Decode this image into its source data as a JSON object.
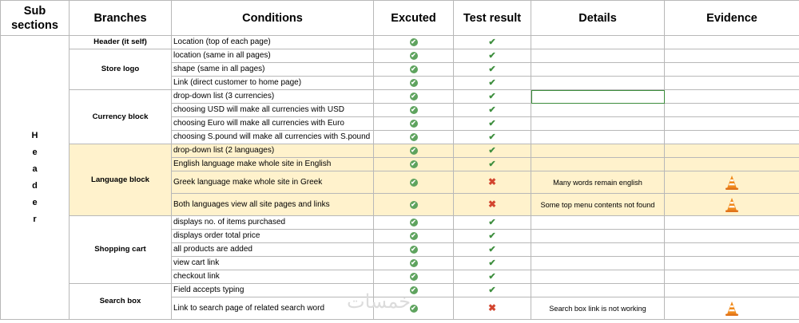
{
  "headers": {
    "sub_sections": "Sub sections",
    "branches": "Branches",
    "conditions": "Conditions",
    "executed": "Excuted",
    "test_result": "Test result",
    "details": "Details",
    "evidence": "Evidence"
  },
  "section_letters": [
    "H",
    "e",
    "a",
    "d",
    "e",
    "r"
  ],
  "groups": [
    {
      "branch": "Header (it self)",
      "rows": [
        {
          "condition": "Location (top of each page)",
          "executed": "check-circle-icon",
          "result": "pass",
          "details": "",
          "evidence": false
        }
      ]
    },
    {
      "branch": "Store logo",
      "rows": [
        {
          "condition": "location (same in all pages)",
          "executed": "check-circle-icon",
          "result": "pass",
          "details": "",
          "evidence": false
        },
        {
          "condition": "shape (same in all pages)",
          "executed": "check-circle-icon",
          "result": "pass",
          "details": "",
          "evidence": false
        },
        {
          "condition": "Link (direct customer to home page)",
          "executed": "check-circle-icon",
          "result": "pass",
          "details": "",
          "evidence": false
        }
      ]
    },
    {
      "branch": "Currency block",
      "rows": [
        {
          "condition": "drop-down list (3 currencies)",
          "executed": "check-circle-icon",
          "result": "pass",
          "details": "",
          "evidence": false
        },
        {
          "condition": "choosing USD will make all currencies with USD",
          "executed": "check-circle-icon",
          "result": "pass",
          "details": "",
          "evidence": false
        },
        {
          "condition": "choosing Euro will make all currencies with Euro",
          "executed": "check-circle-icon",
          "result": "pass",
          "details": "",
          "evidence": false
        },
        {
          "condition": "choosing S.pound will make all currencies with S.pound",
          "executed": "check-circle-icon",
          "result": "pass",
          "details": "",
          "evidence": false
        }
      ]
    },
    {
      "branch": "Language block",
      "highlight": true,
      "rows": [
        {
          "condition": "drop-down list (2 languages)",
          "executed": "check-circle-icon",
          "result": "pass",
          "details": "",
          "evidence": false
        },
        {
          "condition": "English language make whole site in English",
          "executed": "check-circle-icon",
          "result": "pass",
          "details": "",
          "evidence": false
        },
        {
          "condition": "Greek language make whole site in Greek",
          "executed": "check-circle-icon",
          "result": "fail",
          "details": "Many words remain english",
          "evidence": true
        },
        {
          "condition": "Both languages view all site pages and links",
          "executed": "check-circle-icon",
          "result": "fail",
          "details": "Some top menu contents not found",
          "evidence": true
        }
      ]
    },
    {
      "branch": "Shopping cart",
      "rows": [
        {
          "condition": "displays no. of items purchased",
          "executed": "check-circle-icon",
          "result": "pass",
          "details": "",
          "evidence": false
        },
        {
          "condition": "displays order total price",
          "executed": "check-circle-icon",
          "result": "pass",
          "details": "",
          "evidence": false
        },
        {
          "condition": "all products are added",
          "executed": "check-circle-icon",
          "result": "pass",
          "details": "",
          "evidence": false
        },
        {
          "condition": "view cart link",
          "executed": "check-circle-icon",
          "result": "pass",
          "details": "",
          "evidence": false
        },
        {
          "condition": "checkout link",
          "executed": "check-circle-icon",
          "result": "pass",
          "details": "",
          "evidence": false
        }
      ]
    },
    {
      "branch": "Search box",
      "rows": [
        {
          "condition": "Field accepts typing",
          "executed": "check-circle-icon",
          "result": "pass",
          "details": "",
          "evidence": false
        },
        {
          "condition": "Link to search page of related search word",
          "executed": "check-circle-icon",
          "result": "fail",
          "details": "Search box link is not working",
          "evidence": true
        }
      ]
    }
  ],
  "watermark": "خمسات",
  "colors": {
    "highlight": "#fff2cc",
    "pass": "#3f8f3f",
    "fail": "#d3452f",
    "executed": "#5ea35e"
  }
}
